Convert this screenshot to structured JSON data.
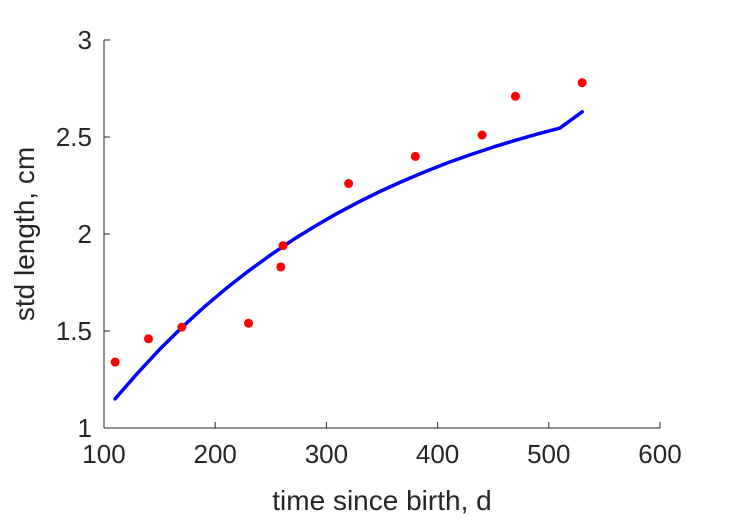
{
  "chart_data": {
    "type": "scatter",
    "title": "",
    "xlabel": "time since birth, d",
    "ylabel": "std length, cm",
    "xlim": [
      100,
      600
    ],
    "ylim": [
      1,
      3
    ],
    "xticks": [
      100,
      200,
      300,
      400,
      500,
      600
    ],
    "yticks": [
      1,
      1.5,
      2,
      2.5,
      3
    ],
    "xtick_labels": [
      "100",
      "200",
      "300",
      "400",
      "500",
      "600"
    ],
    "ytick_labels": [
      "1",
      "1.5",
      "2",
      "2.5",
      "3"
    ],
    "grid": false,
    "legend": "none",
    "series": [
      {
        "type": "scatter",
        "color": "#ff0000",
        "x": [
          110,
          140,
          170,
          230,
          259,
          261,
          320,
          380,
          440,
          470,
          530
        ],
        "y": [
          1.34,
          1.46,
          1.52,
          1.54,
          1.83,
          1.94,
          2.26,
          2.4,
          2.51,
          2.71,
          2.78
        ]
      },
      {
        "type": "line",
        "color": "#0000ff",
        "x": [
          110,
          130,
          150,
          170,
          190,
          210,
          230,
          250,
          270,
          290,
          310,
          330,
          350,
          370,
          390,
          410,
          430,
          450,
          470,
          490,
          510,
          530
        ],
        "y": [
          1.15,
          1.282,
          1.405,
          1.518,
          1.623,
          1.72,
          1.81,
          1.893,
          1.97,
          2.041,
          2.107,
          2.168,
          2.224,
          2.276,
          2.324,
          2.369,
          2.41,
          2.448,
          2.483,
          2.516,
          2.546,
          2.63
        ]
      }
    ]
  }
}
